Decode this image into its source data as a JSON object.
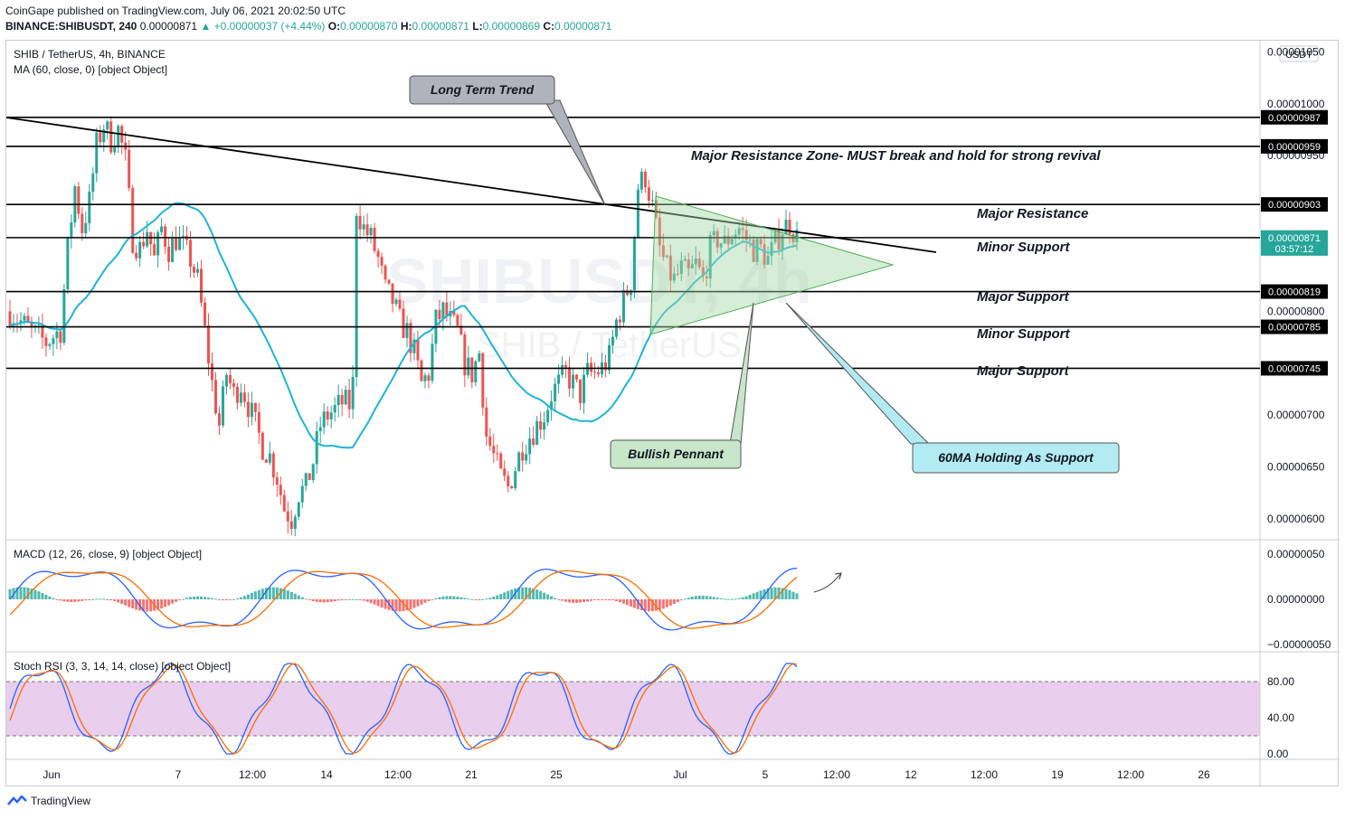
{
  "header": {
    "line1": "CoinGape published on TradingView.com, July 06, 2021 20:02:50 UTC",
    "symbol": "BINANCE:SHIBUSDT, 240",
    "last": "0.00000871",
    "change": "▲ +0.00000037 (+4.44%)",
    "o_label": "O:",
    "o": "0.00000870",
    "h_label": "H:",
    "h": "0.00000871",
    "l_label": "L:",
    "l": "0.00000869",
    "c_label": "C:",
    "c": "0.00000871"
  },
  "legends": {
    "main_title": "SHIB / TetherUS, 4h, BINANCE",
    "ma": "MA (60, close, 0) [object Object]",
    "macd": "MACD (12, 26, close, 9) [object Object]",
    "stoch": "Stoch RSI (3, 3, 14, 14, close) [object Object]"
  },
  "watermark": {
    "big": "SHIBUSDT, 4h",
    "small": "SHIB / TetherUS"
  },
  "currency": "USDT",
  "footer": {
    "brand": "TradingView"
  },
  "colors": {
    "up": "#26a69a",
    "down": "#ef5350",
    "ma": "#1eb5d6",
    "macd": "#2962ff",
    "signal": "#ff6d00",
    "stoch_k": "#2962ff",
    "stoch_d": "#ff6d00",
    "stoch_band": "#e1bee7",
    "pennant": "#a5d6a7"
  },
  "chart_data": [
    {
      "type": "candlestick",
      "title": "SHIB / TetherUS, 4h, BINANCE",
      "ylim": [
        5.92e-06,
        1.06e-05
      ],
      "price_ticks": [
        "0.00001050",
        "0.00001000",
        "0.00000950",
        "0.00000800",
        "0.00000700",
        "0.00000650",
        "0.00000600"
      ],
      "x_ticks": [
        "Jun",
        "7",
        "12:00",
        "14",
        "12:00",
        "21",
        "25",
        "Jul",
        "5",
        "12:00",
        "12",
        "12:00",
        "19",
        "12:00",
        "26"
      ],
      "key_levels": [
        {
          "value": "0.00000987",
          "price": 9.87e-06
        },
        {
          "value": "0.00000959",
          "price": 9.59e-06
        },
        {
          "value": "0.00000903",
          "price": 9.03e-06
        },
        {
          "value": "0.00000871",
          "price": 8.71e-06
        },
        {
          "value": "0.00000819",
          "price": 8.19e-06
        },
        {
          "value": "0.00000785",
          "price": 7.85e-06
        },
        {
          "value": "0.00000745",
          "price": 7.45e-06
        }
      ],
      "current_price": "0.00000871",
      "countdown": "03:57:12",
      "annotations": [
        {
          "text": "Major Resistance Zone- MUST break and hold for strong revival"
        },
        {
          "text": "Major Resistance"
        },
        {
          "text": "Minor Support"
        },
        {
          "text": "Major Support"
        },
        {
          "text": "Minor Support"
        },
        {
          "text": "Major Support"
        },
        {
          "text": "Long Term Trend"
        },
        {
          "text": "Bullish Pennant"
        },
        {
          "text": "60MA Holding As Support"
        }
      ],
      "path_points": [
        [
          0,
          8e-06
        ],
        [
          6,
          7.8e-06
        ],
        [
          10,
          7.7e-06
        ],
        [
          14,
          7.82e-06
        ],
        [
          16,
          8.6e-06
        ],
        [
          18,
          9.2e-06
        ],
        [
          20,
          8.8e-06
        ],
        [
          22,
          9.05e-06
        ],
        [
          24,
          9.6e-06
        ],
        [
          26,
          9.8e-06
        ],
        [
          28,
          9.65e-06
        ],
        [
          30,
          9.75e-06
        ],
        [
          32,
          9.45e-06
        ],
        [
          34,
          8.7e-06
        ],
        [
          36,
          8.6e-06
        ],
        [
          38,
          8.8e-06
        ],
        [
          40,
          8.5e-06
        ],
        [
          42,
          8.8e-06
        ],
        [
          44,
          8.6e-06
        ],
        [
          46,
          8.7e-06
        ],
        [
          48,
          8.62e-06
        ],
        [
          50,
          8.5e-06
        ],
        [
          52,
          8.3e-06
        ],
        [
          54,
          7.8e-06
        ],
        [
          56,
          7.3e-06
        ],
        [
          58,
          6.9e-06
        ],
        [
          60,
          7.4e-06
        ],
        [
          62,
          7.2e-06
        ],
        [
          64,
          7.3e-06
        ],
        [
          66,
          7.1e-06
        ],
        [
          68,
          6.9e-06
        ],
        [
          70,
          6.7e-06
        ],
        [
          72,
          6.6e-06
        ],
        [
          74,
          6.4e-06
        ],
        [
          76,
          6.1e-06
        ],
        [
          78,
          6e-06
        ],
        [
          80,
          6.25e-06
        ],
        [
          82,
          6.3e-06
        ],
        [
          84,
          6.55e-06
        ],
        [
          86,
          6.9e-06
        ],
        [
          88,
          7e-06
        ],
        [
          90,
          7.05e-06
        ],
        [
          92,
          7.12e-06
        ],
        [
          94,
          7.1e-06
        ],
        [
          95,
          7.3e-06
        ],
        [
          96,
          9e-06
        ],
        [
          97,
          8.9e-06
        ],
        [
          98,
          8.8e-06
        ],
        [
          100,
          8.7e-06
        ],
        [
          102,
          8.5e-06
        ],
        [
          104,
          8.2e-06
        ],
        [
          106,
          8.1e-06
        ],
        [
          108,
          7.9e-06
        ],
        [
          110,
          7.8e-06
        ],
        [
          112,
          7.6e-06
        ],
        [
          114,
          7.3e-06
        ],
        [
          116,
          7.4e-06
        ],
        [
          118,
          7.9e-06
        ],
        [
          120,
          8e-06
        ],
        [
          122,
          7.9e-06
        ],
        [
          124,
          7.8e-06
        ],
        [
          126,
          7.5e-06
        ],
        [
          128,
          7.4e-06
        ],
        [
          130,
          7.6e-06
        ],
        [
          132,
          6.8e-06
        ],
        [
          134,
          6.6e-06
        ],
        [
          136,
          6.4e-06
        ],
        [
          138,
          6.3e-06
        ],
        [
          140,
          6.5e-06
        ],
        [
          142,
          6.7e-06
        ],
        [
          144,
          6.8e-06
        ],
        [
          146,
          6.9e-06
        ],
        [
          148,
          7e-06
        ],
        [
          150,
          7.2e-06
        ],
        [
          152,
          7.3e-06
        ],
        [
          154,
          7.4e-06
        ],
        [
          156,
          7.3e-06
        ],
        [
          158,
          7.2e-06
        ],
        [
          160,
          7.4e-06
        ],
        [
          162,
          7.4e-06
        ],
        [
          164,
          7.45e-06
        ],
        [
          166,
          7.55e-06
        ],
        [
          168,
          7.9e-06
        ],
        [
          170,
          8.1e-06
        ],
        [
          172,
          8.3e-06
        ],
        [
          174,
          9.2e-06
        ],
        [
          176,
          9.3e-06
        ],
        [
          178,
          9e-06
        ],
        [
          180,
          8.6e-06
        ],
        [
          182,
          8.4e-06
        ],
        [
          184,
          8.3e-06
        ],
        [
          186,
          8.4e-06
        ],
        [
          188,
          8.35e-06
        ],
        [
          190,
          8.45e-06
        ],
        [
          192,
          8.3e-06
        ],
        [
          194,
          8.6e-06
        ],
        [
          196,
          8.7e-06
        ],
        [
          198,
          8.65e-06
        ],
        [
          200,
          8.75e-06
        ],
        [
          202,
          8.8e-06
        ],
        [
          204,
          8.7e-06
        ],
        [
          206,
          8.6e-06
        ],
        [
          208,
          8.6e-06
        ],
        [
          210,
          8.5e-06
        ],
        [
          212,
          8.65e-06
        ],
        [
          214,
          8.8e-06
        ],
        [
          216,
          8.85e-06
        ],
        [
          218,
          8.71e-06
        ]
      ]
    },
    {
      "type": "line",
      "title": "MACD (12, 26, close, 9) [object Object]",
      "y_ticks": [
        "0.00000050",
        "0.00000000",
        "−0.00000050"
      ],
      "series": []
    },
    {
      "type": "line",
      "title": "Stoch RSI (3, 3, 14, 14, close) [object Object]",
      "y_ticks": [
        "80.00",
        "40.00",
        "0.00"
      ],
      "band": [
        20,
        80
      ],
      "series": []
    }
  ]
}
